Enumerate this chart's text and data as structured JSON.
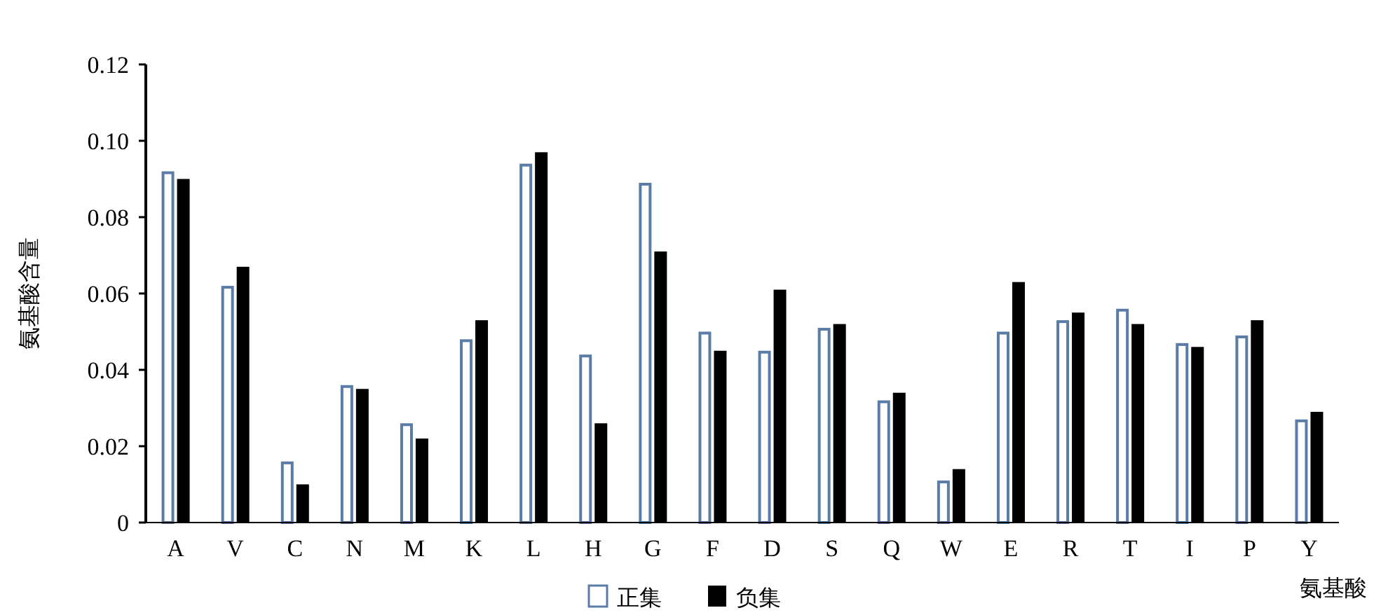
{
  "chart_data": {
    "type": "bar",
    "xlabel": "氨基酸",
    "ylabel": "氨基酸含量",
    "categories": [
      "A",
      "V",
      "C",
      "N",
      "M",
      "K",
      "L",
      "H",
      "G",
      "F",
      "D",
      "S",
      "Q",
      "W",
      "E",
      "R",
      "T",
      "I",
      "P",
      "Y"
    ],
    "series": [
      {
        "name": "正集",
        "color": "#5a7ca6",
        "values": [
          0.092,
          0.062,
          0.016,
          0.036,
          0.026,
          0.048,
          0.094,
          0.044,
          0.089,
          0.05,
          0.045,
          0.051,
          0.032,
          0.011,
          0.05,
          0.053,
          0.056,
          0.047,
          0.049,
          0.027
        ]
      },
      {
        "name": "负集",
        "color": "#000000",
        "values": [
          0.09,
          0.067,
          0.01,
          0.035,
          0.022,
          0.053,
          0.097,
          0.026,
          0.071,
          0.045,
          0.061,
          0.052,
          0.034,
          0.014,
          0.063,
          0.055,
          0.052,
          0.046,
          0.053,
          0.029
        ]
      }
    ],
    "ylim": [
      0,
      0.12
    ],
    "yticks": [
      0,
      {
        "value": 0.02,
        "label": "0.02"
      },
      {
        "value": 0.04,
        "label": "0.04"
      },
      {
        "value": 0.06,
        "label": "0.06"
      },
      {
        "value": 0.08,
        "label": "0.08"
      },
      {
        "value": 0.1,
        "label": "0.10"
      },
      {
        "value": 0.12,
        "label": "0.12"
      }
    ],
    "grid": false,
    "legend": "bottom"
  }
}
